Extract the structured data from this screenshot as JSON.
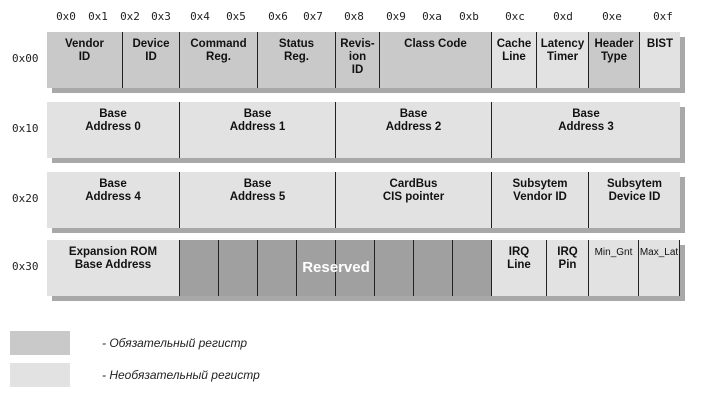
{
  "offsets_header": [
    "0x0",
    "0x1",
    "0x2",
    "0x3",
    "0x4",
    "0x5",
    "0x6",
    "0x7",
    "0x8",
    "0x9",
    "0xa",
    "0xb",
    "0xc",
    "0xd",
    "0xe",
    "0xf"
  ],
  "rows": [
    {
      "label": "0x00",
      "cells": [
        {
          "text": "Vendor\nID",
          "type": "mandatory"
        },
        {
          "text": "Device\nID",
          "type": "mandatory"
        },
        {
          "text": "Command\nReg.",
          "type": "mandatory"
        },
        {
          "text": "Status\nReg.",
          "type": "mandatory"
        },
        {
          "text": "Revis-\nion\nID",
          "type": "mandatory"
        },
        {
          "text": "Class Code",
          "type": "mandatory"
        },
        {
          "text": "Cache\nLine",
          "type": "optional"
        },
        {
          "text": "Latency\nTimer",
          "type": "optional"
        },
        {
          "text": "Header\nType",
          "type": "mandatory"
        },
        {
          "text": "BIST",
          "type": "optional"
        }
      ]
    },
    {
      "label": "0x10",
      "cells": [
        {
          "text": "Base\nAddress 0",
          "type": "optional"
        },
        {
          "text": "Base\nAddress 1",
          "type": "optional"
        },
        {
          "text": "Base\nAddress 2",
          "type": "optional"
        },
        {
          "text": "Base\nAddress 3",
          "type": "optional"
        }
      ]
    },
    {
      "label": "0x20",
      "cells": [
        {
          "text": "Base\nAddress 4",
          "type": "optional"
        },
        {
          "text": "Base\nAddress 5",
          "type": "optional"
        },
        {
          "text": "CardBus\nCIS pointer",
          "type": "optional"
        },
        {
          "text": "Subsytem\nVendor ID",
          "type": "optional"
        },
        {
          "text": "Subsytem\nDevice ID",
          "type": "optional"
        }
      ]
    },
    {
      "label": "0x30",
      "cells": [
        {
          "text": "Expansion ROM\nBase Address",
          "type": "optional"
        },
        {
          "text": "",
          "type": "reserved"
        },
        {
          "text": "",
          "type": "reserved"
        },
        {
          "text": "",
          "type": "reserved"
        },
        {
          "text": "",
          "type": "reserved"
        },
        {
          "text": "",
          "type": "reserved"
        },
        {
          "text": "",
          "type": "reserved"
        },
        {
          "text": "",
          "type": "reserved"
        },
        {
          "text": "",
          "type": "reserved"
        },
        {
          "text": "IRQ\nLine",
          "type": "optional"
        },
        {
          "text": "IRQ\nPin",
          "type": "optional"
        },
        {
          "text": "Min_Gnt",
          "type": "optional"
        },
        {
          "text": "Max_Lat",
          "type": "optional"
        }
      ],
      "reserved_label": "Reserved"
    }
  ],
  "legend": {
    "mandatory": "- Обязательный регистр",
    "optional": "- Необязательный регистр"
  },
  "colors": {
    "mandatory": "#c9c9c9",
    "optional": "#e2e2e2",
    "reserved": "#a0a0a0"
  }
}
